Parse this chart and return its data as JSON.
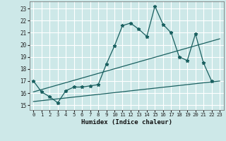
{
  "xlabel": "Humidex (Indice chaleur)",
  "bg_color": "#cde8e8",
  "grid_color": "#ffffff",
  "line_color": "#1a6060",
  "xlim": [
    -0.5,
    23.5
  ],
  "ylim": [
    14.6,
    23.6
  ],
  "yticks": [
    15,
    16,
    17,
    18,
    19,
    20,
    21,
    22,
    23
  ],
  "xticks": [
    0,
    1,
    2,
    3,
    4,
    5,
    6,
    7,
    8,
    9,
    10,
    11,
    12,
    13,
    14,
    15,
    16,
    17,
    18,
    19,
    20,
    21,
    22,
    23
  ],
  "series1_x": [
    0,
    1,
    2,
    3,
    4,
    5,
    6,
    7,
    8,
    9,
    10,
    11,
    12,
    13,
    14,
    15,
    16,
    17,
    18,
    19,
    20,
    21,
    22
  ],
  "series1_y": [
    17.0,
    16.1,
    15.7,
    15.2,
    16.2,
    16.5,
    16.5,
    16.6,
    16.7,
    18.4,
    19.9,
    21.6,
    21.8,
    21.3,
    20.7,
    23.2,
    21.7,
    21.0,
    19.0,
    18.7,
    20.9,
    18.5,
    17.0
  ],
  "series2_x": [
    0,
    23
  ],
  "series2_y": [
    16.1,
    20.5
  ],
  "series3_x": [
    0,
    23
  ],
  "series3_y": [
    15.3,
    17.0
  ]
}
